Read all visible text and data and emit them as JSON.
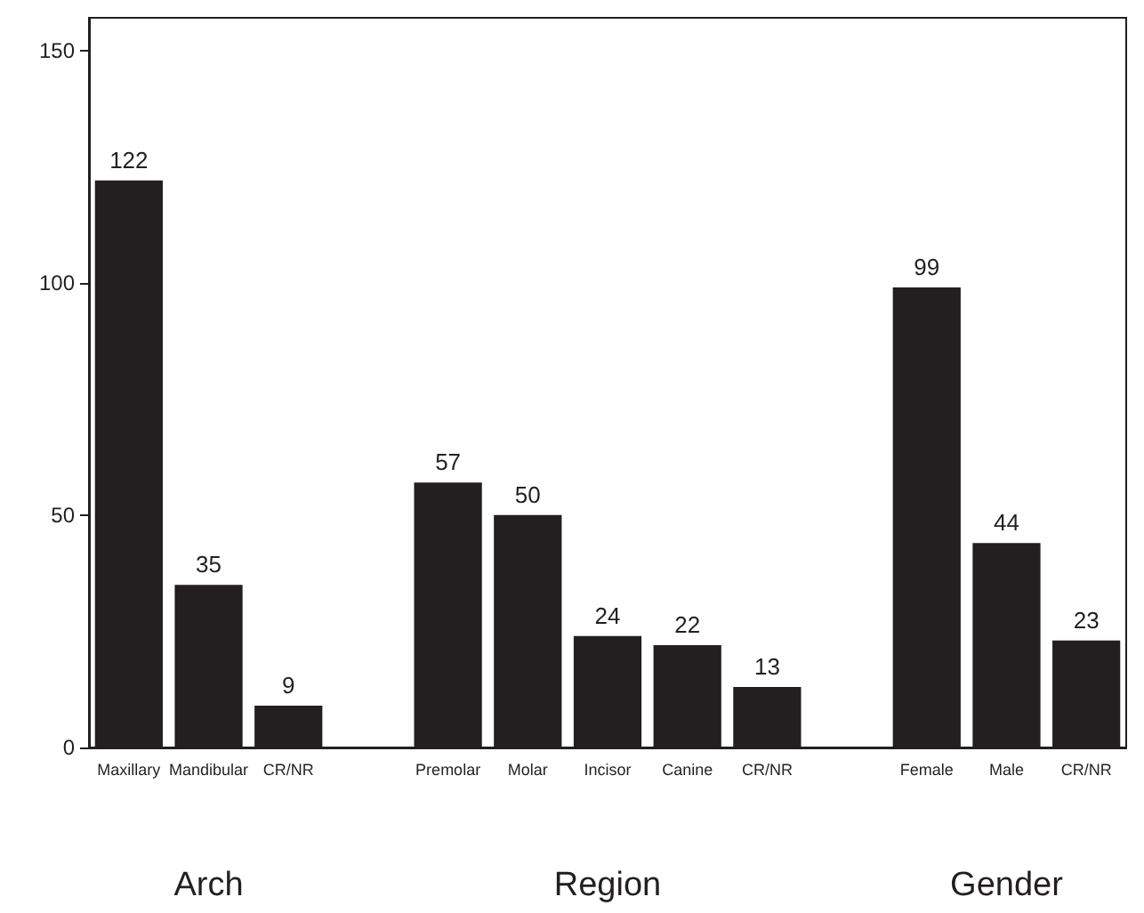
{
  "chart_data": {
    "type": "bar",
    "categories": [
      "Maxillary",
      "Mandibular",
      "CR/NR",
      null,
      "Premolar",
      "Molar",
      "Incisor",
      "Canine",
      "CR/NR",
      null,
      "Female",
      "Male",
      "CR/NR"
    ],
    "values": [
      122,
      35,
      9,
      null,
      57,
      50,
      24,
      22,
      13,
      null,
      99,
      44,
      23
    ],
    "color": "#231f20",
    "ylim": [
      0,
      157
    ],
    "yticks": [
      0,
      50,
      100,
      150
    ],
    "data_labels": true,
    "grid": false,
    "annotations": [
      "Arch",
      "Region",
      "Gender"
    ]
  }
}
